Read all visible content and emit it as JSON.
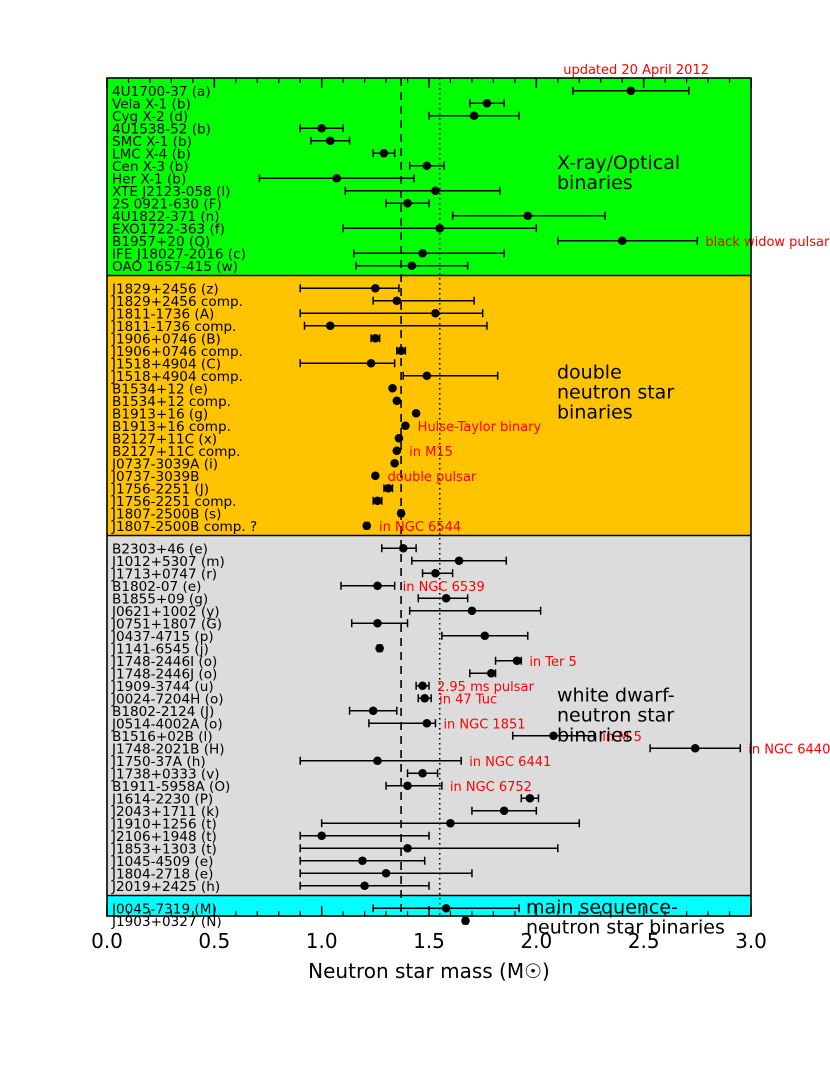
{
  "chart_data": {
    "type": "scatter",
    "xlabel": "Neutron star mass (M☉)",
    "xlim": [
      0.0,
      3.0
    ],
    "xticks": [
      "0.0",
      "0.5",
      "1.0",
      "1.5",
      "2.0",
      "2.5",
      "3.0"
    ],
    "reference_lines": [
      {
        "style": "dashed",
        "x": 1.37
      },
      {
        "style": "dotted",
        "x": 1.55
      }
    ],
    "groups": [
      {
        "name": "X-ray/Optical binaries",
        "label_lines": [
          "X-ray/Optical",
          "binaries"
        ],
        "color": "#00ff00",
        "points": [
          {
            "label": "4U1700-37 (a)",
            "mass": 2.44,
            "err_low": 0.27,
            "err_high": 0.27
          },
          {
            "label": "Vela X-1 (b)",
            "mass": 1.77,
            "err_low": 0.08,
            "err_high": 0.08
          },
          {
            "label": "Cyg X-2 (d)",
            "mass": 1.71,
            "err_low": 0.21,
            "err_high": 0.21
          },
          {
            "label": "4U1538-52 (b)",
            "mass": 1.0,
            "err_low": 0.1,
            "err_high": 0.1
          },
          {
            "label": "SMC X-1 (b)",
            "mass": 1.04,
            "err_low": 0.09,
            "err_high": 0.09
          },
          {
            "label": "LMC X-4 (b)",
            "mass": 1.29,
            "err_low": 0.05,
            "err_high": 0.05
          },
          {
            "label": "Cen X-3 (b)",
            "mass": 1.49,
            "err_low": 0.08,
            "err_high": 0.08
          },
          {
            "label": "Her X-1 (b)",
            "mass": 1.07,
            "err_low": 0.36,
            "err_high": 0.36
          },
          {
            "label": "XTE J2123-058 (l)",
            "mass": 1.53,
            "err_low": 0.42,
            "err_high": 0.3
          },
          {
            "label": "2S 0921-630 (F)",
            "mass": 1.4,
            "err_low": 0.1,
            "err_high": 0.1
          },
          {
            "label": "4U1822-371 (n)",
            "mass": 1.96,
            "err_low": 0.35,
            "err_high": 0.36
          },
          {
            "label": "EXO1722-363 (f)",
            "mass": 1.55,
            "err_low": 0.45,
            "err_high": 0.45
          },
          {
            "label": "B1957+20 (Q)",
            "mass": 2.4,
            "err_low": 0.3,
            "err_high": 0.35,
            "annotation": "black widow pulsar"
          },
          {
            "label": "IFE J18027-2016 (c)",
            "mass": 1.47,
            "err_low": 0.32,
            "err_high": 0.38
          },
          {
            "label": "OAO 1657-415 (w)",
            "mass": 1.42,
            "err_low": 0.26,
            "err_high": 0.26
          }
        ]
      },
      {
        "name": "double neutron star binaries",
        "label_lines": [
          "double",
          "neutron star",
          "binaries"
        ],
        "color": "#ffc300",
        "points": [
          {
            "label": "J1829+2456 (z)",
            "mass": 1.25,
            "err_low": 0.35,
            "err_high": 0.11
          },
          {
            "label": "J1829+2456 comp.",
            "mass": 1.35,
            "err_low": 0.11,
            "err_high": 0.36
          },
          {
            "label": "J1811-1736 (A)",
            "mass": 1.53,
            "err_low": 0.63,
            "err_high": 0.22
          },
          {
            "label": "J1811-1736 comp.",
            "mass": 1.04,
            "err_low": 0.12,
            "err_high": 0.73
          },
          {
            "label": "J1906+0746 (B)",
            "mass": 1.25,
            "err_low": 0.02,
            "err_high": 0.02
          },
          {
            "label": "J1906+0746 comp.",
            "mass": 1.37,
            "err_low": 0.02,
            "err_high": 0.02
          },
          {
            "label": "J1518+4904 (C)",
            "mass": 1.23,
            "err_low": 0.33,
            "err_high": 0.11
          },
          {
            "label": "J1518+4904 comp.",
            "mass": 1.49,
            "err_low": 0.11,
            "err_high": 0.33
          },
          {
            "label": "B1534+12 (e)",
            "mass": 1.33,
            "err_low": 0.002,
            "err_high": 0.002
          },
          {
            "label": "B1534+12 comp.",
            "mass": 1.35,
            "err_low": 0.002,
            "err_high": 0.002
          },
          {
            "label": "B1913+16 (g)",
            "mass": 1.44,
            "err_low": 0.002,
            "err_high": 0.002
          },
          {
            "label": "B1913+16 comp.",
            "mass": 1.39,
            "err_low": 0.002,
            "err_high": 0.002,
            "annotation": "Hulse-Taylor binary"
          },
          {
            "label": "B2127+11C (x)",
            "mass": 1.36,
            "err_low": 0.005,
            "err_high": 0.005
          },
          {
            "label": "B2127+11C comp.",
            "mass": 1.35,
            "err_low": 0.005,
            "err_high": 0.005,
            "annotation": "in M15"
          },
          {
            "label": "J0737-3039A (i)",
            "mass": 1.34,
            "err_low": 0.001,
            "err_high": 0.001
          },
          {
            "label": "J0737-3039B",
            "mass": 1.25,
            "err_low": 0.001,
            "err_high": 0.001,
            "annotation": "double pulsar"
          },
          {
            "label": "J1756-2251 (J)",
            "mass": 1.31,
            "err_low": 0.02,
            "err_high": 0.02
          },
          {
            "label": "J1756-2251 comp.",
            "mass": 1.26,
            "err_low": 0.02,
            "err_high": 0.02
          },
          {
            "label": "J1807-2500B (s)",
            "mass": 1.37,
            "err_low": 0.01,
            "err_high": 0.01
          },
          {
            "label": "J1807-2500B comp. ?",
            "mass": 1.21,
            "err_low": 0.01,
            "err_high": 0.01,
            "annotation": "in NGC 6544"
          }
        ]
      },
      {
        "name": "white dwarf-neutron star binaries",
        "label_lines": [
          "white dwarf-",
          "neutron star",
          "binaries"
        ],
        "color": "#dcdcdc",
        "points": [
          {
            "label": "B2303+46 (e)",
            "mass": 1.38,
            "err_low": 0.1,
            "err_high": 0.06
          },
          {
            "label": "J1012+5307 (m)",
            "mass": 1.64,
            "err_low": 0.22,
            "err_high": 0.22
          },
          {
            "label": "J1713+0747 (r)",
            "mass": 1.53,
            "err_low": 0.06,
            "err_high": 0.08
          },
          {
            "label": "B1802-07 (e)",
            "mass": 1.26,
            "err_low": 0.17,
            "err_high": 0.08,
            "annotation": "in NGC 6539"
          },
          {
            "label": "B1855+09 (g)",
            "mass": 1.58,
            "err_low": 0.13,
            "err_high": 0.1
          },
          {
            "label": "J0621+1002 (y)",
            "mass": 1.7,
            "err_low": 0.29,
            "err_high": 0.32
          },
          {
            "label": "J0751+1807 (G)",
            "mass": 1.26,
            "err_low": 0.12,
            "err_high": 0.14
          },
          {
            "label": "J0437-4715 (p)",
            "mass": 1.76,
            "err_low": 0.2,
            "err_high": 0.2
          },
          {
            "label": "J1141-6545 (j)",
            "mass": 1.27,
            "err_low": 0.01,
            "err_high": 0.01
          },
          {
            "label": "J1748-2446I (o)",
            "mass": 1.91,
            "err_low": 0.1,
            "err_high": 0.02,
            "annotation": "in Ter 5"
          },
          {
            "label": "J1748-2446J (o)",
            "mass": 1.79,
            "err_low": 0.1,
            "err_high": 0.02
          },
          {
            "label": "J1909-3744 (u)",
            "mass": 1.47,
            "err_low": 0.03,
            "err_high": 0.03,
            "annotation": "2.95 ms pulsar"
          },
          {
            "label": "J0024-7204H (o)",
            "mass": 1.48,
            "err_low": 0.03,
            "err_high": 0.03,
            "annotation": "in 47 Tuc"
          },
          {
            "label": "B1802-2124 (J)",
            "mass": 1.24,
            "err_low": 0.11,
            "err_high": 0.11
          },
          {
            "label": "J0514-4002A (o)",
            "mass": 1.49,
            "err_low": 0.27,
            "err_high": 0.04,
            "annotation": "in NGC 1851"
          },
          {
            "label": "B1516+02B (l)",
            "mass": 2.08,
            "err_low": 0.19,
            "err_high": 0.19,
            "annotation": "in M 5"
          },
          {
            "label": "J1748-2021B (H)",
            "mass": 2.74,
            "err_low": 0.21,
            "err_high": 0.21,
            "annotation": "in NGC 6440"
          },
          {
            "label": "J1750-37A (h)",
            "mass": 1.26,
            "err_low": 0.36,
            "err_high": 0.39,
            "annotation": "in NGC 6441"
          },
          {
            "label": "J1738+0333 (v)",
            "mass": 1.47,
            "err_low": 0.07,
            "err_high": 0.07
          },
          {
            "label": "B1911-5958A (O)",
            "mass": 1.4,
            "err_low": 0.1,
            "err_high": 0.16,
            "annotation": "in NGC 6752"
          },
          {
            "label": "J1614-2230 (P)",
            "mass": 1.97,
            "err_low": 0.04,
            "err_high": 0.04
          },
          {
            "label": "J2043+1711 (k)",
            "mass": 1.85,
            "err_low": 0.15,
            "err_high": 0.15
          },
          {
            "label": "J1910+1256 (t)",
            "mass": 1.6,
            "err_low": 0.6,
            "err_high": 0.6
          },
          {
            "label": "J2106+1948 (t)",
            "mass": 1.0,
            "err_low": 0.1,
            "err_high": 0.5
          },
          {
            "label": "J1853+1303 (t)",
            "mass": 1.4,
            "err_low": 0.5,
            "err_high": 0.7
          },
          {
            "label": "J1045-4509 (e)",
            "mass": 1.19,
            "err_low": 0.29,
            "err_high": 0.29
          },
          {
            "label": "J1804-2718 (e)",
            "mass": 1.3,
            "err_low": 0.4,
            "err_high": 0.4
          },
          {
            "label": "J2019+2425 (h)",
            "mass": 1.2,
            "err_low": 0.3,
            "err_high": 0.3
          }
        ]
      },
      {
        "name": "main sequence-neutron star binaries",
        "label_lines": [
          "main sequence-",
          "neutron star binaries"
        ],
        "color": "#00ffff",
        "points": [
          {
            "label": "J0045-7319 (M)",
            "mass": 1.58,
            "err_low": 0.34,
            "err_high": 0.34
          },
          {
            "label": "J1903+0327 (N)",
            "mass": 1.67,
            "err_low": 0.01,
            "err_high": 0.01
          }
        ]
      }
    ],
    "top_annotation": "updated 20 April 2012"
  }
}
